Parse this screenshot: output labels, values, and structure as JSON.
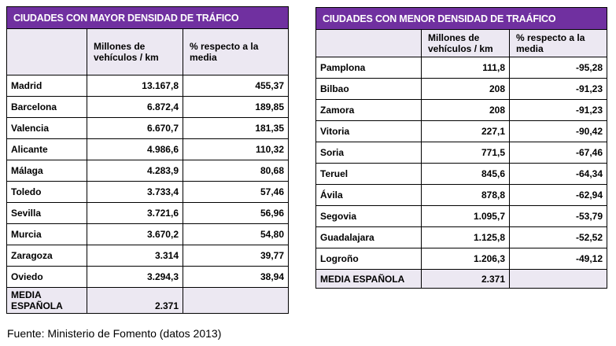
{
  "left_table": {
    "title": "CIUDADES CON MAYOR DENSIDAD DE TRÁFICO",
    "col_vehicles": "Millones de vehículos / km",
    "col_percent": "% respecto a la media",
    "rows": [
      {
        "city": "Madrid",
        "vehicles": "13.167,8",
        "percent": "455,37"
      },
      {
        "city": "Barcelona",
        "vehicles": "6.872,4",
        "percent": "189,85"
      },
      {
        "city": "Valencia",
        "vehicles": "6.670,7",
        "percent": "181,35"
      },
      {
        "city": "Alicante",
        "vehicles": "4.986,6",
        "percent": "110,32"
      },
      {
        "city": "Málaga",
        "vehicles": "4.283,9",
        "percent": "80,68"
      },
      {
        "city": "Toledo",
        "vehicles": "3.733,4",
        "percent": "57,46"
      },
      {
        "city": "Sevilla",
        "vehicles": "3.721,6",
        "percent": "56,96"
      },
      {
        "city": "Murcia",
        "vehicles": "3.670,2",
        "percent": "54,80"
      },
      {
        "city": "Zaragoza",
        "vehicles": "3.314",
        "percent": "39,77"
      },
      {
        "city": "Oviedo",
        "vehicles": "3.294,3",
        "percent": "38,94"
      }
    ],
    "footer_label": "MEDIA ESPAÑOLA",
    "footer_value": "2.371"
  },
  "right_table": {
    "title": "CIUDADES CON MENOR DENSIDAD DE TRAÁFICO",
    "col_vehicles": "Millones de vehículos / km",
    "col_percent": "% respecto a la media",
    "rows": [
      {
        "city": "Pamplona",
        "vehicles": "111,8",
        "percent": "-95,28"
      },
      {
        "city": "Bilbao",
        "vehicles": "208",
        "percent": "-91,23"
      },
      {
        "city": "Zamora",
        "vehicles": "208",
        "percent": "-91,23"
      },
      {
        "city": "Vitoria",
        "vehicles": "227,1",
        "percent": "-90,42"
      },
      {
        "city": "Soria",
        "vehicles": "771,5",
        "percent": "-67,46"
      },
      {
        "city": "Teruel",
        "vehicles": "845,6",
        "percent": "-64,34"
      },
      {
        "city": "Ávila",
        "vehicles": "878,8",
        "percent": "-62,94"
      },
      {
        "city": "Segovia",
        "vehicles": "1.095,7",
        "percent": "-53,79"
      },
      {
        "city": "Guadalajara",
        "vehicles": "1.125,8",
        "percent": "-52,52"
      },
      {
        "city": "Logroño",
        "vehicles": "1.206,3",
        "percent": "-49,12"
      }
    ],
    "footer_label": "MEDIA ESPAÑOLA",
    "footer_value": "2.371"
  },
  "source": "Fuente: Ministerio de Fomento (datos 2013)",
  "colors": {
    "title_bg": "#7030a0",
    "header_bg": "#ece8f2"
  }
}
